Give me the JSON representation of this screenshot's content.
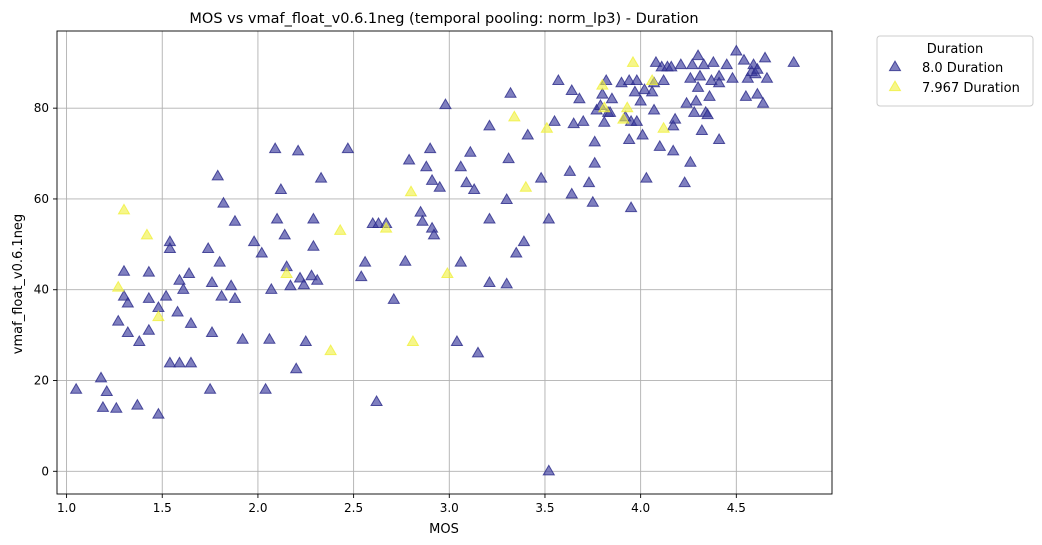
{
  "chart_data": {
    "type": "scatter",
    "title": "MOS vs vmaf_float_v0.6.1neg (temporal pooling: norm_lp3) - Duration",
    "xlabel": "MOS",
    "ylabel": "vmaf_float_v0.6.1neg",
    "xlim": [
      0.95,
      5.0
    ],
    "ylim": [
      -5,
      97
    ],
    "xticks": [
      1.0,
      1.5,
      2.0,
      2.5,
      3.0,
      3.5,
      4.0,
      4.5
    ],
    "xtick_labels": [
      "1.0",
      "1.5",
      "2.0",
      "2.5",
      "3.0",
      "3.5",
      "4.0",
      "4.5"
    ],
    "yticks": [
      0,
      20,
      40,
      60,
      80
    ],
    "ytick_labels": [
      "0",
      "20",
      "40",
      "60",
      "80"
    ],
    "grid": true,
    "legend": {
      "title": "Duration",
      "placement": "outside-top-right"
    },
    "marker": "triangle-up",
    "series": [
      {
        "name": "8.0 Duration",
        "color": "#3b3b9c",
        "points": [
          [
            1.05,
            18
          ],
          [
            1.18,
            20.5
          ],
          [
            1.19,
            14
          ],
          [
            1.21,
            17.5
          ],
          [
            1.26,
            13.8
          ],
          [
            1.27,
            33
          ],
          [
            1.3,
            38.5
          ],
          [
            1.3,
            44
          ],
          [
            1.32,
            30.5
          ],
          [
            1.32,
            37
          ],
          [
            1.37,
            14.5
          ],
          [
            1.38,
            28.5
          ],
          [
            1.43,
            31
          ],
          [
            1.43,
            38
          ],
          [
            1.43,
            43.8
          ],
          [
            1.48,
            12.5
          ],
          [
            1.48,
            36
          ],
          [
            1.52,
            38.5
          ],
          [
            1.54,
            50.5
          ],
          [
            1.54,
            49
          ],
          [
            1.54,
            23.8
          ],
          [
            1.58,
            35
          ],
          [
            1.59,
            23.8
          ],
          [
            1.59,
            42
          ],
          [
            1.61,
            40
          ],
          [
            1.64,
            43.5
          ],
          [
            1.65,
            32.5
          ],
          [
            1.65,
            23.8
          ],
          [
            1.74,
            49
          ],
          [
            1.75,
            18
          ],
          [
            1.76,
            41.5
          ],
          [
            1.76,
            30.5
          ],
          [
            1.79,
            65
          ],
          [
            1.8,
            46
          ],
          [
            1.81,
            38.5
          ],
          [
            1.82,
            59
          ],
          [
            1.86,
            40.8
          ],
          [
            1.88,
            55
          ],
          [
            1.88,
            38
          ],
          [
            1.92,
            29
          ],
          [
            1.98,
            50.5
          ],
          [
            2.02,
            48
          ],
          [
            2.04,
            18
          ],
          [
            2.06,
            29
          ],
          [
            2.07,
            40
          ],
          [
            2.09,
            71
          ],
          [
            2.1,
            55.5
          ],
          [
            2.12,
            62
          ],
          [
            2.14,
            52
          ],
          [
            2.15,
            45
          ],
          [
            2.17,
            40.8
          ],
          [
            2.2,
            22.5
          ],
          [
            2.21,
            70.5
          ],
          [
            2.22,
            42.5
          ],
          [
            2.24,
            41
          ],
          [
            2.25,
            28.5
          ],
          [
            2.28,
            43
          ],
          [
            2.29,
            55.5
          ],
          [
            2.29,
            49.5
          ],
          [
            2.31,
            42
          ],
          [
            2.33,
            64.5
          ],
          [
            2.47,
            71
          ],
          [
            2.54,
            42.8
          ],
          [
            2.56,
            46
          ],
          [
            2.6,
            54.5
          ],
          [
            2.62,
            15.3
          ],
          [
            2.63,
            54.5
          ],
          [
            2.67,
            54.5
          ],
          [
            2.71,
            37.8
          ],
          [
            2.77,
            46.2
          ],
          [
            2.79,
            68.5
          ],
          [
            2.85,
            57
          ],
          [
            2.86,
            55
          ],
          [
            2.88,
            67
          ],
          [
            2.9,
            71
          ],
          [
            2.91,
            53.5
          ],
          [
            2.91,
            64
          ],
          [
            2.92,
            52
          ],
          [
            2.95,
            62.5
          ],
          [
            2.98,
            80.7
          ],
          [
            3.04,
            28.5
          ],
          [
            3.06,
            67
          ],
          [
            3.06,
            46
          ],
          [
            3.09,
            63.5
          ],
          [
            3.11,
            70.2
          ],
          [
            3.13,
            62
          ],
          [
            3.15,
            26
          ],
          [
            3.21,
            76
          ],
          [
            3.21,
            41.5
          ],
          [
            3.21,
            55.5
          ],
          [
            3.3,
            41.2
          ],
          [
            3.3,
            59.8
          ],
          [
            3.31,
            68.8
          ],
          [
            3.32,
            83.2
          ],
          [
            3.35,
            48
          ],
          [
            3.39,
            50.5
          ],
          [
            3.41,
            74
          ],
          [
            3.48,
            64.5
          ],
          [
            3.52,
            55.5
          ],
          [
            3.52,
            0
          ],
          [
            3.55,
            77
          ],
          [
            3.57,
            86
          ],
          [
            3.63,
            66
          ],
          [
            3.64,
            61
          ],
          [
            3.64,
            83.8
          ],
          [
            3.65,
            76.5
          ],
          [
            3.68,
            82
          ],
          [
            3.7,
            77
          ],
          [
            3.73,
            63.5
          ],
          [
            3.75,
            59.2
          ],
          [
            3.76,
            72.5
          ],
          [
            3.76,
            67.8
          ],
          [
            3.77,
            79.5
          ],
          [
            3.79,
            80.5
          ],
          [
            3.8,
            83
          ],
          [
            3.81,
            76.8
          ],
          [
            3.82,
            86
          ],
          [
            3.83,
            79
          ],
          [
            3.84,
            79
          ],
          [
            3.85,
            82
          ],
          [
            3.9,
            85.5
          ],
          [
            3.92,
            78
          ],
          [
            3.94,
            73
          ],
          [
            3.94,
            86
          ],
          [
            3.95,
            58
          ],
          [
            3.95,
            77
          ],
          [
            3.97,
            83.5
          ],
          [
            3.98,
            77
          ],
          [
            3.98,
            86
          ],
          [
            4.0,
            81.5
          ],
          [
            4.01,
            74
          ],
          [
            4.02,
            84
          ],
          [
            4.03,
            64.5
          ],
          [
            4.06,
            83.5
          ],
          [
            4.07,
            85.5
          ],
          [
            4.07,
            79.5
          ],
          [
            4.08,
            90
          ],
          [
            4.1,
            71.5
          ],
          [
            4.11,
            89
          ],
          [
            4.12,
            86
          ],
          [
            4.14,
            89
          ],
          [
            4.16,
            89
          ],
          [
            4.17,
            76
          ],
          [
            4.17,
            70.5
          ],
          [
            4.18,
            77.5
          ],
          [
            4.21,
            89.5
          ],
          [
            4.23,
            63.5
          ],
          [
            4.24,
            81
          ],
          [
            4.26,
            86.5
          ],
          [
            4.26,
            68
          ],
          [
            4.27,
            89.5
          ],
          [
            4.28,
            79
          ],
          [
            4.29,
            81.5
          ],
          [
            4.3,
            91.5
          ],
          [
            4.3,
            84.5
          ],
          [
            4.31,
            87
          ],
          [
            4.32,
            75
          ],
          [
            4.33,
            89.5
          ],
          [
            4.34,
            79
          ],
          [
            4.35,
            78.5
          ],
          [
            4.36,
            82.5
          ],
          [
            4.37,
            86
          ],
          [
            4.38,
            90
          ],
          [
            4.41,
            87
          ],
          [
            4.41,
            73
          ],
          [
            4.41,
            85.5
          ],
          [
            4.45,
            89.5
          ],
          [
            4.48,
            86.5
          ],
          [
            4.5,
            92.5
          ],
          [
            4.54,
            90.5
          ],
          [
            4.55,
            82.5
          ],
          [
            4.56,
            86.5
          ],
          [
            4.58,
            88
          ],
          [
            4.59,
            89.5
          ],
          [
            4.6,
            87.5
          ],
          [
            4.61,
            83
          ],
          [
            4.61,
            88.5
          ],
          [
            4.64,
            81
          ],
          [
            4.65,
            91
          ],
          [
            4.66,
            86.5
          ],
          [
            4.8,
            90
          ]
        ]
      },
      {
        "name": "7.967 Duration",
        "color": "#f0f03c",
        "points": [
          [
            1.27,
            40.5
          ],
          [
            1.3,
            57.5
          ],
          [
            1.42,
            52
          ],
          [
            1.48,
            34
          ],
          [
            2.15,
            43.5
          ],
          [
            2.38,
            26.5
          ],
          [
            2.43,
            53
          ],
          [
            2.67,
            53.5
          ],
          [
            2.8,
            61.5
          ],
          [
            2.81,
            28.5
          ],
          [
            2.99,
            43.5
          ],
          [
            3.34,
            78
          ],
          [
            3.4,
            62.5
          ],
          [
            3.51,
            75.5
          ],
          [
            3.8,
            85
          ],
          [
            3.81,
            80
          ],
          [
            3.91,
            77.5
          ],
          [
            3.93,
            80
          ],
          [
            3.96,
            90
          ],
          [
            4.06,
            86
          ],
          [
            4.12,
            75.5
          ]
        ]
      }
    ]
  }
}
